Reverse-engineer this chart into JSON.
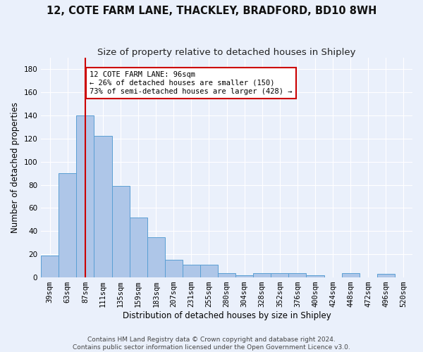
{
  "title": "12, COTE FARM LANE, THACKLEY, BRADFORD, BD10 8WH",
  "subtitle": "Size of property relative to detached houses in Shipley",
  "xlabel": "Distribution of detached houses by size in Shipley",
  "ylabel": "Number of detached properties",
  "footer_line1": "Contains HM Land Registry data © Crown copyright and database right 2024.",
  "footer_line2": "Contains public sector information licensed under the Open Government Licence v3.0.",
  "bin_labels": [
    "39sqm",
    "63sqm",
    "87sqm",
    "111sqm",
    "135sqm",
    "159sqm",
    "183sqm",
    "207sqm",
    "231sqm",
    "255sqm",
    "280sqm",
    "304sqm",
    "328sqm",
    "352sqm",
    "376sqm",
    "400sqm",
    "424sqm",
    "448sqm",
    "472sqm",
    "496sqm",
    "520sqm"
  ],
  "bar_values": [
    19,
    90,
    140,
    122,
    79,
    52,
    35,
    15,
    11,
    11,
    4,
    2,
    4,
    4,
    4,
    2,
    0,
    4,
    0,
    3,
    0
  ],
  "bar_color": "#aec6e8",
  "bar_edge_color": "#5a9fd4",
  "vline_x": 2,
  "vline_color": "#cc0000",
  "annotation_line1": "12 COTE FARM LANE: 96sqm",
  "annotation_line2": "← 26% of detached houses are smaller (150)",
  "annotation_line3": "73% of semi-detached houses are larger (428) →",
  "annotation_box_color": "#ffffff",
  "annotation_box_edge": "#cc0000",
  "ylim": [
    0,
    190
  ],
  "yticks": [
    0,
    20,
    40,
    60,
    80,
    100,
    120,
    140,
    160,
    180
  ],
  "background_color": "#eaf0fb",
  "grid_color": "#ffffff",
  "title_fontsize": 10.5,
  "subtitle_fontsize": 9.5,
  "ylabel_fontsize": 8.5,
  "xlabel_fontsize": 8.5,
  "tick_fontsize": 7.5,
  "annotation_fontsize": 7.5,
  "footer_fontsize": 6.5
}
